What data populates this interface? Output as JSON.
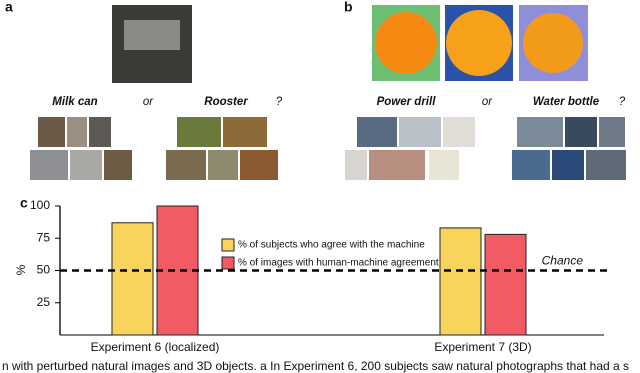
{
  "panels": {
    "a": "a",
    "b": "b",
    "c": "c"
  },
  "panel_a": {
    "option1": "Milk can",
    "or": "or",
    "option2": "Rooster",
    "question": "?"
  },
  "panel_b": {
    "option1": "Power drill",
    "or": "or",
    "option2": "Water bottle",
    "question": "?"
  },
  "chart_data": {
    "type": "bar",
    "y_label": "%",
    "categories": [
      "Experiment 6 (localized)",
      "Experiment 7 (3D)"
    ],
    "series": [
      {
        "name": "% of subjects who agree with the machine",
        "color": "#f9d45c",
        "values": [
          87,
          83
        ]
      },
      {
        "name": "% of images with human-machine agreement",
        "color": "#f35b64",
        "values": [
          100,
          78
        ]
      }
    ],
    "ylim": [
      0,
      100
    ],
    "yticks": [
      25,
      50,
      75,
      100
    ],
    "chance_line": {
      "value": 50,
      "label": "Chance"
    },
    "legend": "top-center"
  },
  "caption": "n with perturbed natural images and 3D objects. a In Experiment 6, 200 subjects saw natural photographs that had a s"
}
